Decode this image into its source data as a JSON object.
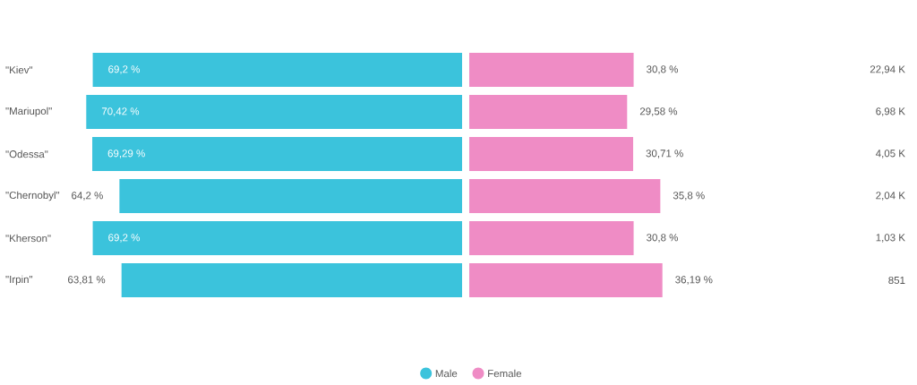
{
  "chart_data": [
    {
      "type": "bar",
      "orientation": "horizontal",
      "categories": [
        "\"Kiev\"",
        "\"Mariupol\"",
        "\"Odessa\"",
        "\"Chernobyl\"",
        "\"Kherson\"",
        "\"Irpin\""
      ],
      "tick_labels": "y",
      "legend": "bottom",
      "series": [
        {
          "name": "Male",
          "color": "#3bc3dc",
          "values": [
            69.2,
            70.42,
            69.29,
            64.2,
            69.2,
            63.81
          ],
          "value_labels": [
            "69,2 %",
            "70,42 %",
            "69,29 %",
            "64,2 %",
            "69,2 %",
            "63,81 %"
          ]
        }
      ]
    },
    {
      "type": "bar",
      "orientation": "horizontal",
      "categories": [
        null,
        null,
        null,
        null,
        null,
        null
      ],
      "tick_labels": false,
      "legend": "bottom",
      "series": [
        {
          "name": "Female",
          "color": "#ef8cc5",
          "values": [
            30.8,
            29.58,
            30.71,
            35.8,
            30.8,
            36.19
          ],
          "value_labels": [
            "30,8 %",
            "29,58 %",
            "30,71 %",
            "35,8 %",
            "30,8 %",
            "36,19 %"
          ]
        }
      ],
      "annotations": [
        "22,94 K",
        "6,98 K",
        "4,05 K",
        "2,04 K",
        "1,03 K",
        "851"
      ]
    }
  ]
}
